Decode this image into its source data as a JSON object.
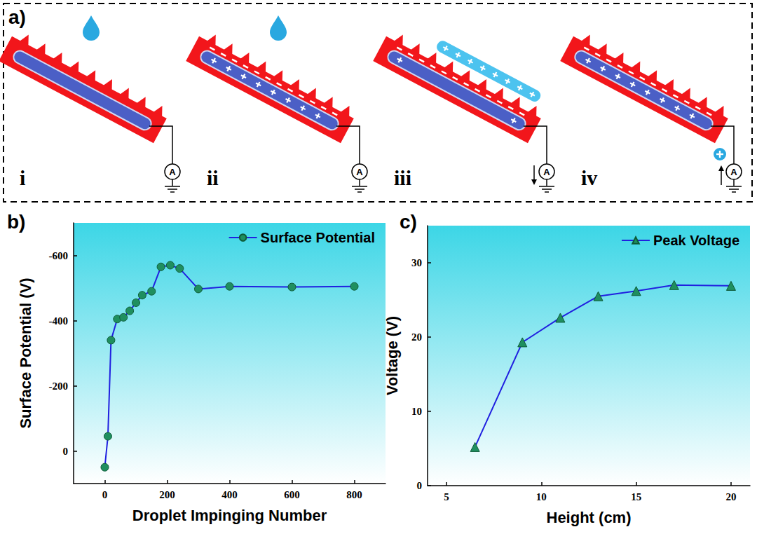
{
  "diagram": {
    "label": "a)",
    "steps": [
      "i",
      "ii",
      "iii",
      "iv"
    ],
    "meter": "A"
  },
  "chart_data": [
    {
      "type": "line",
      "title": "b)",
      "x_label": "Droplet Impinging Number",
      "y_label": "Surface Potential (V)",
      "x": [
        0,
        10,
        20,
        40,
        60,
        80,
        100,
        120,
        150,
        180,
        210,
        240,
        300,
        400,
        600,
        800
      ],
      "series": [
        {
          "name": "Surface Potential",
          "color": "#2020e0",
          "marker": "circle",
          "values": [
            50,
            -45,
            -340,
            -405,
            -410,
            -430,
            -455,
            -478,
            -490,
            -565,
            -570,
            -560,
            -497,
            -505,
            -503,
            -505
          ]
        }
      ],
      "xlim": [
        -100,
        900
      ],
      "xticks": [
        0,
        200,
        400,
        600,
        800
      ],
      "ylim": [
        100,
        -700
      ],
      "yticks": [
        0,
        -200,
        -400,
        -600
      ],
      "legend": "upper right",
      "grid": false
    },
    {
      "type": "line",
      "title": "c)",
      "x_label": "Height (cm)",
      "y_label": "Voltage (V)",
      "x": [
        6.5,
        9,
        11,
        13,
        15,
        17,
        20
      ],
      "series": [
        {
          "name": "Peak Voltage",
          "color": "#2020e0",
          "marker": "triangle",
          "values": [
            5.2,
            19.3,
            22.6,
            25.5,
            26.2,
            27,
            26.9
          ]
        }
      ],
      "xlim": [
        4,
        21
      ],
      "xticks": [
        5,
        10,
        15,
        20
      ],
      "ylim": [
        0,
        35
      ],
      "yticks": [
        0,
        10,
        20,
        30
      ],
      "legend": "upper right",
      "grid": false
    }
  ]
}
